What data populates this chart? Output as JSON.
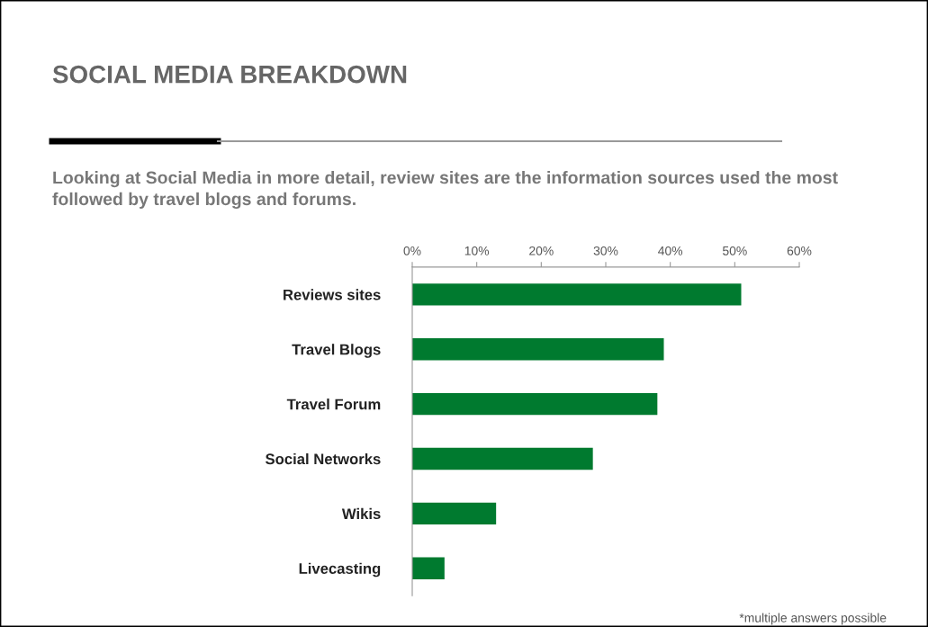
{
  "chart_data": {
    "type": "bar",
    "orientation": "horizontal",
    "title": "SOCIAL MEDIA BREAKDOWN",
    "subtitle": "Looking at Social Media in more detail, review sites are the information sources used the most followed by travel blogs and forums.",
    "categories": [
      "Reviews sites",
      "Travel Blogs",
      "Travel Forum",
      "Social Networks",
      "Wikis",
      "Livecasting"
    ],
    "values": [
      51,
      39,
      38,
      28,
      13,
      5
    ],
    "color": "#007a2f",
    "xlim": [
      0,
      60
    ],
    "xticks": [
      {
        "value": 0,
        "label": "0%"
      },
      {
        "value": 10,
        "label": "10%"
      },
      {
        "value": 20,
        "label": "20%"
      },
      {
        "value": 30,
        "label": "30%"
      },
      {
        "value": 40,
        "label": "40%"
      },
      {
        "value": 50,
        "label": "50%"
      },
      {
        "value": 60,
        "label": "60%"
      }
    ],
    "grid": false,
    "legend": false,
    "annotations": [
      "*multiple answers possible"
    ]
  }
}
